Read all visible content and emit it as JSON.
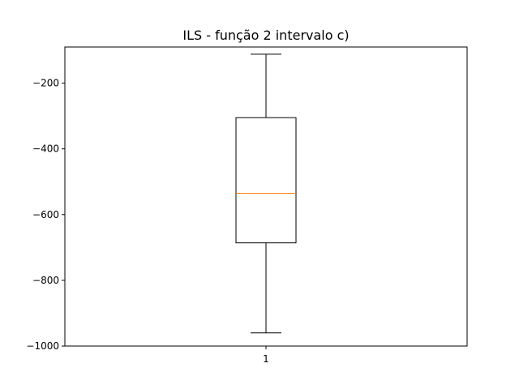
{
  "chart_data": {
    "type": "box",
    "title": "ILS - função 2 intervalo c)",
    "xlabel": "",
    "ylabel": "",
    "categories": [
      "1"
    ],
    "ylim": [
      -1000,
      -90
    ],
    "yticks": [
      -200,
      -400,
      -600,
      -800,
      -1000
    ],
    "ytick_labels": [
      "−200",
      "−400",
      "−600",
      "−800",
      "−1000"
    ],
    "grid": false,
    "boxes": [
      {
        "category": "1",
        "whisker_high": -112,
        "q3": -305,
        "median": -535,
        "q1": -686,
        "whisker_low": -960
      }
    ],
    "colors": {
      "box": "#000000",
      "median": "#ff7f0e",
      "axes": "#000000"
    }
  }
}
